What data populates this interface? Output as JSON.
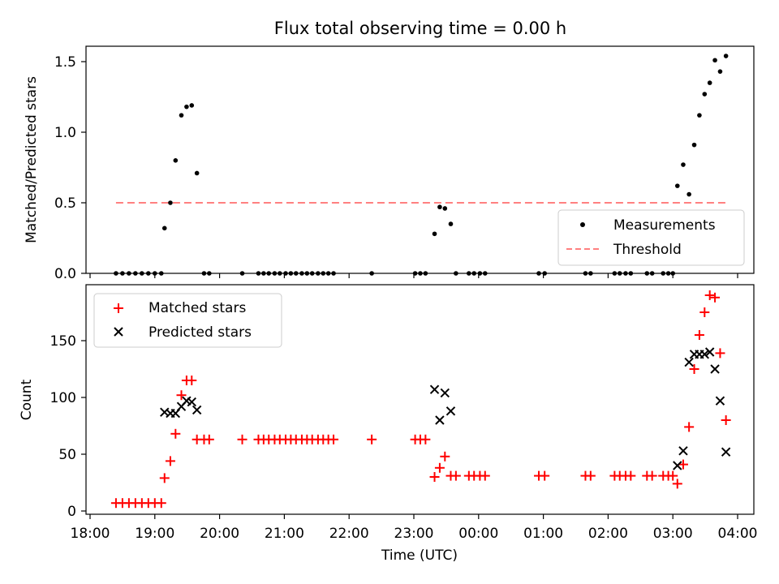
{
  "figure": {
    "title": "Flux total observing time = 0.00 h",
    "xlabel": "Time (UTC)",
    "xticks": [
      "18:00",
      "19:00",
      "20:00",
      "21:00",
      "22:00",
      "23:00",
      "00:00",
      "01:00",
      "02:00",
      "03:00",
      "04:00"
    ]
  },
  "chart_data": [
    {
      "type": "scatter",
      "panel": "top",
      "ylabel": "Matched/Predicted stars",
      "ylim": [
        0,
        1.6
      ],
      "yticks": [
        "0.0",
        "0.5",
        "1.0",
        "1.5"
      ],
      "legend_position": "lower-right",
      "x_unit": "hours after 18:00 UTC",
      "series": [
        {
          "name": "Measurements",
          "marker": "dot",
          "color": "#000000",
          "points": [
            [
              0.4,
              0
            ],
            [
              0.5,
              0
            ],
            [
              0.6,
              0
            ],
            [
              0.7,
              0
            ],
            [
              0.8,
              0
            ],
            [
              0.9,
              0
            ],
            [
              1.0,
              0
            ],
            [
              1.1,
              0
            ],
            [
              1.15,
              0.32
            ],
            [
              1.24,
              0.5
            ],
            [
              1.32,
              0.8
            ],
            [
              1.41,
              1.12
            ],
            [
              1.49,
              1.18
            ],
            [
              1.57,
              1.19
            ],
            [
              1.65,
              0.71
            ],
            [
              1.76,
              0
            ],
            [
              1.84,
              0
            ],
            [
              2.35,
              0
            ],
            [
              2.6,
              0
            ],
            [
              2.68,
              0
            ],
            [
              2.76,
              0
            ],
            [
              2.85,
              0
            ],
            [
              2.93,
              0
            ],
            [
              3.02,
              0
            ],
            [
              3.1,
              0
            ],
            [
              3.18,
              0
            ],
            [
              3.27,
              0
            ],
            [
              3.35,
              0
            ],
            [
              3.43,
              0
            ],
            [
              3.52,
              0
            ],
            [
              3.6,
              0
            ],
            [
              3.68,
              0
            ],
            [
              3.76,
              0
            ],
            [
              4.35,
              0
            ],
            [
              5.02,
              0
            ],
            [
              5.1,
              0
            ],
            [
              5.18,
              0
            ],
            [
              5.32,
              0.28
            ],
            [
              5.4,
              0.47
            ],
            [
              5.48,
              0.46
            ],
            [
              5.57,
              0.35
            ],
            [
              5.65,
              0
            ],
            [
              5.85,
              0
            ],
            [
              5.93,
              0
            ],
            [
              6.02,
              0
            ],
            [
              6.1,
              0
            ],
            [
              6.93,
              0
            ],
            [
              7.02,
              0
            ],
            [
              7.65,
              0
            ],
            [
              7.73,
              0
            ],
            [
              8.1,
              0
            ],
            [
              8.18,
              0
            ],
            [
              8.27,
              0
            ],
            [
              8.35,
              0
            ],
            [
              8.6,
              0
            ],
            [
              8.68,
              0
            ],
            [
              8.85,
              0
            ],
            [
              8.93,
              0
            ],
            [
              9.0,
              0
            ],
            [
              9.07,
              0.62
            ],
            [
              9.16,
              0.77
            ],
            [
              9.25,
              0.56
            ],
            [
              9.33,
              0.91
            ],
            [
              9.41,
              1.12
            ],
            [
              9.49,
              1.27
            ],
            [
              9.57,
              1.35
            ],
            [
              9.65,
              1.51
            ],
            [
              9.73,
              1.43
            ],
            [
              9.82,
              1.54
            ]
          ]
        },
        {
          "name": "Threshold",
          "marker": "dashed-line",
          "color": "#ff8080",
          "x_range": [
            0.4,
            9.82
          ],
          "value": 0.5
        }
      ]
    },
    {
      "type": "scatter",
      "panel": "bottom",
      "ylabel": "Count",
      "ylim": [
        -3,
        195
      ],
      "yticks": [
        "0",
        "50",
        "100",
        "150"
      ],
      "legend_position": "upper-left",
      "x_unit": "hours after 18:00 UTC",
      "series": [
        {
          "name": "Matched stars",
          "marker": "plus",
          "color": "#ff0000",
          "points": [
            [
              0.4,
              7
            ],
            [
              0.5,
              7
            ],
            [
              0.6,
              7
            ],
            [
              0.7,
              7
            ],
            [
              0.8,
              7
            ],
            [
              0.9,
              7
            ],
            [
              1.0,
              7
            ],
            [
              1.1,
              7
            ],
            [
              1.15,
              29
            ],
            [
              1.24,
              44
            ],
            [
              1.32,
              68
            ],
            [
              1.41,
              102
            ],
            [
              1.49,
              115
            ],
            [
              1.57,
              115
            ],
            [
              1.65,
              63
            ],
            [
              1.76,
              63
            ],
            [
              1.84,
              63
            ],
            [
              2.35,
              63
            ],
            [
              2.6,
              63
            ],
            [
              2.68,
              63
            ],
            [
              2.76,
              63
            ],
            [
              2.85,
              63
            ],
            [
              2.93,
              63
            ],
            [
              3.02,
              63
            ],
            [
              3.1,
              63
            ],
            [
              3.18,
              63
            ],
            [
              3.27,
              63
            ],
            [
              3.35,
              63
            ],
            [
              3.43,
              63
            ],
            [
              3.52,
              63
            ],
            [
              3.6,
              63
            ],
            [
              3.68,
              63
            ],
            [
              3.76,
              63
            ],
            [
              4.35,
              63
            ],
            [
              5.02,
              63
            ],
            [
              5.1,
              63
            ],
            [
              5.18,
              63
            ],
            [
              5.32,
              30
            ],
            [
              5.4,
              38
            ],
            [
              5.48,
              48
            ],
            [
              5.57,
              31
            ],
            [
              5.65,
              31
            ],
            [
              5.85,
              31
            ],
            [
              5.93,
              31
            ],
            [
              6.02,
              31
            ],
            [
              6.1,
              31
            ],
            [
              6.93,
              31
            ],
            [
              7.02,
              31
            ],
            [
              7.65,
              31
            ],
            [
              7.73,
              31
            ],
            [
              8.1,
              31
            ],
            [
              8.18,
              31
            ],
            [
              8.27,
              31
            ],
            [
              8.35,
              31
            ],
            [
              8.6,
              31
            ],
            [
              8.68,
              31
            ],
            [
              8.85,
              31
            ],
            [
              8.93,
              31
            ],
            [
              9.0,
              31
            ],
            [
              9.07,
              24
            ],
            [
              9.16,
              41
            ],
            [
              9.25,
              74
            ],
            [
              9.33,
              125
            ],
            [
              9.41,
              155
            ],
            [
              9.49,
              175
            ],
            [
              9.57,
              190
            ],
            [
              9.65,
              188
            ],
            [
              9.73,
              139
            ],
            [
              9.82,
              80
            ]
          ]
        },
        {
          "name": "Predicted stars",
          "marker": "x",
          "color": "#000000",
          "points": [
            [
              1.15,
              87
            ],
            [
              1.24,
              86
            ],
            [
              1.32,
              86
            ],
            [
              1.41,
              92
            ],
            [
              1.49,
              97
            ],
            [
              1.57,
              96
            ],
            [
              1.65,
              89
            ],
            [
              5.32,
              107
            ],
            [
              5.4,
              80
            ],
            [
              5.48,
              104
            ],
            [
              5.57,
              88
            ],
            [
              9.07,
              40
            ],
            [
              9.16,
              53
            ],
            [
              9.25,
              131
            ],
            [
              9.33,
              138
            ],
            [
              9.41,
              138
            ],
            [
              9.49,
              138
            ],
            [
              9.57,
              140
            ],
            [
              9.65,
              125
            ],
            [
              9.73,
              97
            ],
            [
              9.82,
              52
            ]
          ]
        }
      ]
    }
  ]
}
